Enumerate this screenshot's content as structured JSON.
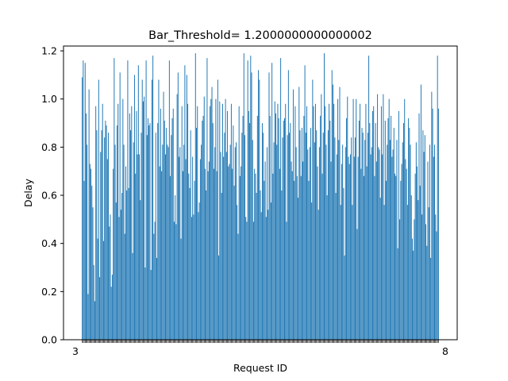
{
  "chart_data": {
    "type": "bar",
    "title": "Bar_Threshold= 1.2000000000000002",
    "xlabel": "Request ID",
    "ylabel": "Delay",
    "ylim": [
      0,
      1.22
    ],
    "yticks": [
      "0.0",
      "0.2",
      "0.4",
      "0.6",
      "0.8",
      "1.0",
      "1.2"
    ],
    "xtick_first": "3",
    "xtick_last": "8",
    "grid": false,
    "legend": "none",
    "bar_color": "#1f77b4",
    "values": [
      1.09,
      1.16,
      0.66,
      1.15,
      0.94,
      0.81,
      0.19,
      1.04,
      0.73,
      0.71,
      0.64,
      0.55,
      0.31,
      0.16,
      0.97,
      0.87,
      0.42,
      1.08,
      0.26,
      0.78,
      0.87,
      0.98,
      0.41,
      0.84,
      0.91,
      0.89,
      0.75,
      0.86,
      0.47,
      0.52,
      0.22,
      0.27,
      0.71,
      1.17,
      0.81,
      0.57,
      0.89,
      0.98,
      0.51,
      1.11,
      0.54,
      0.61,
      1.0,
      0.81,
      0.44,
      0.72,
      0.62,
      1.16,
      0.63,
      0.94,
      0.87,
      0.97,
      0.36,
      0.82,
      1.1,
      0.69,
      0.95,
      0.77,
      1.14,
      0.77,
      0.58,
      0.86,
      1.08,
      0.99,
      1.01,
      0.3,
      1.16,
      0.85,
      0.92,
      0.89,
      0.9,
      0.29,
      1.08,
      1.18,
      0.44,
      0.49,
      0.86,
      0.34,
      0.9,
      1.08,
      0.72,
      0.96,
      0.7,
      0.81,
      1.03,
      0.91,
      0.77,
      0.88,
      0.81,
      0.8,
      1.16,
      0.68,
      0.85,
      0.92,
      0.96,
      0.49,
      0.6,
      0.48,
      1.02,
      1.11,
      0.76,
      0.8,
      0.42,
      0.97,
      0.7,
      0.81,
      1.14,
      0.75,
      1.1,
      0.98,
      0.69,
      0.63,
      0.87,
      0.51,
      0.76,
      0.52,
      0.66,
      1.19,
      0.88,
      0.97,
      0.53,
      0.57,
      0.75,
      0.81,
      0.91,
      0.93,
      1.01,
      0.71,
      0.62,
      1.17,
      0.7,
      0.74,
      0.97,
      1.0,
      1.05,
      0.9,
      0.71,
      0.8,
      1.0,
      0.7,
      1.08,
      0.35,
      0.99,
      0.78,
      0.61,
      0.98,
      0.76,
      0.86,
      1.0,
      0.78,
      0.95,
      0.72,
      0.73,
      0.81,
      0.98,
      0.71,
      0.89,
      0.64,
      0.8,
      0.82,
      0.56,
      0.44,
      0.97,
      0.68,
      0.72,
      0.86,
      0.93,
      1.19,
      0.85,
      0.51,
      0.49,
      1.16,
      0.95,
      0.9,
      1.18,
      1.11,
      0.83,
      0.49,
      0.71,
      0.69,
      0.61,
      0.93,
      1.12,
      1.08,
      0.62,
      0.53,
      0.9,
      0.86,
      0.66,
      0.74,
      0.51,
      0.8,
      0.54,
      1.11,
      0.93,
      0.57,
      1.15,
      0.69,
      0.82,
      0.99,
      0.94,
      0.81,
      0.98,
      0.92,
      0.71,
      1.17,
      0.62,
      0.84,
      0.91,
      0.92,
      0.98,
      0.49,
      0.85,
      1.12,
      0.86,
      0.9,
      0.74,
      0.7,
      1.04,
      0.66,
      0.97,
      0.8,
      0.68,
      0.59,
      1.05,
      0.87,
      0.68,
      0.88,
      0.74,
      0.93,
      1.14,
      0.86,
      0.97,
      0.79,
      0.66,
      0.8,
      0.88,
      0.57,
      1.08,
      0.97,
      0.82,
      0.98,
      0.87,
      0.72,
      0.54,
      0.8,
      0.93,
      1.02,
      0.69,
      0.86,
      1.19,
      0.97,
      0.81,
      0.6,
      0.87,
      0.98,
      0.91,
      0.74,
      1.12,
      1.06,
      0.98,
      0.84,
      0.61,
      0.77,
      1.0,
      0.83,
      1.05,
      0.56,
      0.73,
      0.81,
      0.63,
      0.35,
      0.8,
      0.92,
      1.01,
      0.76,
      0.73,
      0.77,
      0.84,
      0.56,
      1.0,
      0.76,
      0.84,
      1.0,
      0.46,
      0.76,
      0.91,
      0.98,
      0.71,
      0.88,
      0.86,
      0.68,
      0.83,
      0.98,
      0.72,
      0.86,
      1.18,
      0.9,
      0.77,
      0.8,
      0.95,
      0.97,
      0.68,
      0.9,
      0.74,
      1.02,
      0.8,
      0.79,
      0.59,
      0.97,
      0.77,
      1.02,
      0.56,
      0.91,
      0.66,
      0.81,
      0.92,
      1.0,
      0.83,
      0.93,
      0.76,
      0.79,
      0.88,
      0.69,
      0.68,
      0.83,
      0.38,
      0.95,
      0.5,
      0.66,
      0.73,
      0.82,
      0.9,
      1.0,
      0.75,
      0.71,
      0.56,
      0.92,
      0.88,
      0.81,
      0.6,
      0.42,
      0.37,
      0.5,
      0.69,
      0.82,
      0.72,
      0.58,
      0.94,
      0.64,
      1.06,
      0.52,
      0.87,
      0.78,
      0.85,
      0.48,
      0.39,
      0.74,
      0.55,
      0.81,
      0.34,
      1.03,
      0.96,
      0.76,
      0.81,
      0.52,
      0.45,
      1.18,
      0.96
    ]
  }
}
